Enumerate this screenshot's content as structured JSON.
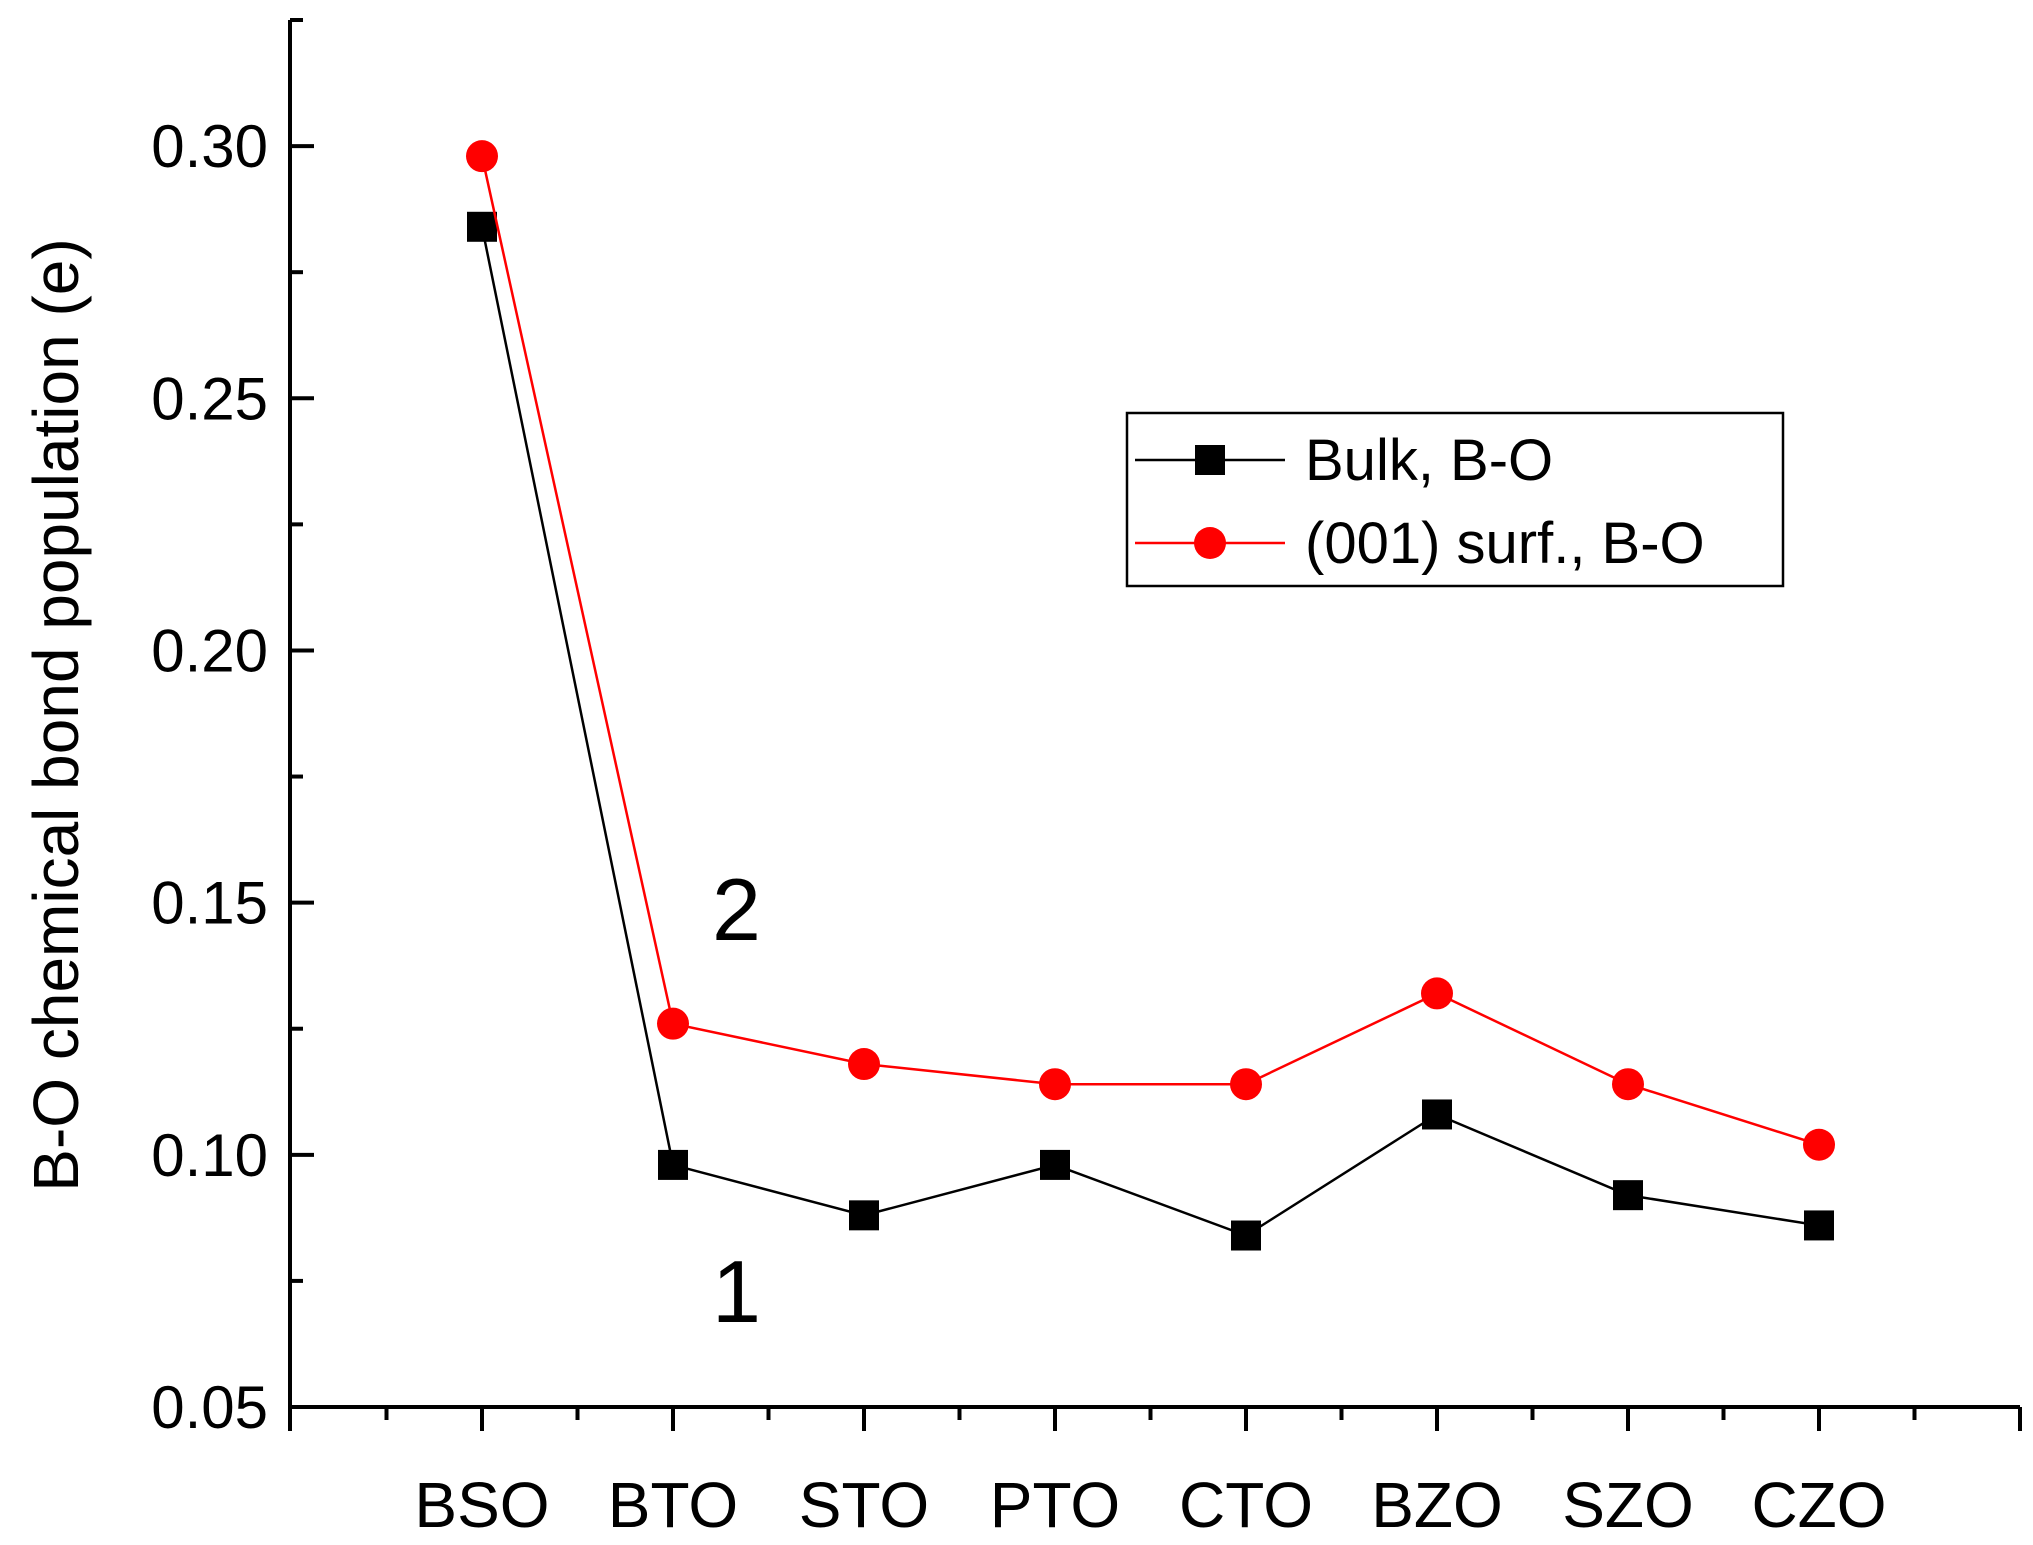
{
  "chart_data": {
    "type": "line",
    "title": "",
    "xlabel": "",
    "ylabel": "B-O chemical bond population (e)",
    "categories": [
      "BSO",
      "BTO",
      "STO",
      "PTO",
      "CTO",
      "BZO",
      "SZO",
      "CZO"
    ],
    "ylim": [
      0.05,
      0.325
    ],
    "yticks": [
      "0.05",
      "0.10",
      "0.15",
      "0.20",
      "0.25",
      "0.30"
    ],
    "grid": false,
    "legend_position": "upper-right",
    "series": [
      {
        "name": "Bulk, B-O",
        "marker": "square",
        "color": "#000000",
        "values": [
          0.284,
          0.098,
          0.088,
          0.098,
          0.084,
          0.108,
          0.092,
          0.086
        ]
      },
      {
        "name": "(001) surf., B-O",
        "marker": "circle",
        "color": "#ff0000",
        "values": [
          0.298,
          0.126,
          0.118,
          0.114,
          0.114,
          0.132,
          0.114,
          0.102
        ]
      }
    ],
    "annotations": [
      {
        "text": "2",
        "near_category": "BTO",
        "series": "(001) surf., B-O"
      },
      {
        "text": "1",
        "near_category": "BTO",
        "series": "Bulk, B-O"
      }
    ]
  }
}
